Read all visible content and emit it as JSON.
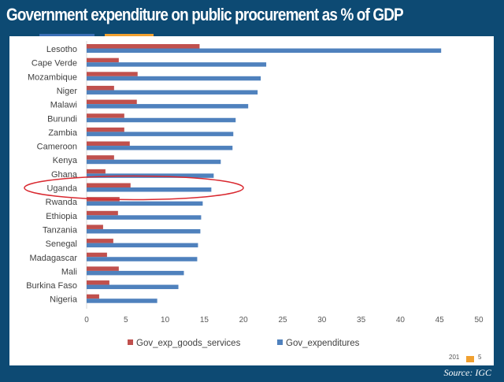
{
  "chart_data": {
    "type": "bar",
    "orientation": "horizontal",
    "title": "Government expenditure on public procurement as % of GDP",
    "categories": [
      "Lesotho",
      "Cape Verde",
      "Mozambique",
      "Niger",
      "Malawi",
      "Burundi",
      "Zambia",
      "Cameroon",
      "Kenya",
      "Ghana",
      "Uganda",
      "Rwanda",
      "Ethiopia",
      "Tanzania",
      "Senegal",
      "Madagascar",
      "Mali",
      "Burkina Faso",
      "Nigeria"
    ],
    "series": [
      {
        "name": "Gov_exp_goods_services",
        "color": "#c0504d",
        "values": [
          14.4,
          4.1,
          6.5,
          3.5,
          6.4,
          4.8,
          4.8,
          5.5,
          3.5,
          2.4,
          5.6,
          4.2,
          4.0,
          2.1,
          3.4,
          2.6,
          4.1,
          2.9,
          1.6
        ]
      },
      {
        "name": "Gov_expenditures",
        "color": "#4f81bd",
        "values": [
          45.2,
          22.9,
          22.2,
          21.8,
          20.6,
          19.0,
          18.7,
          18.6,
          17.1,
          16.2,
          15.9,
          14.8,
          14.6,
          14.5,
          14.2,
          14.1,
          12.4,
          11.7,
          9.0
        ]
      }
    ],
    "xlim": [
      0,
      50
    ],
    "xticks": [
      "0",
      "5",
      "10",
      "15",
      "20",
      "25",
      "30",
      "35",
      "40",
      "45",
      "50"
    ],
    "grid": false,
    "legend": "bottom",
    "highlight": "Uganda",
    "highlight_color": "#d9282f"
  },
  "source": "Source: IGC",
  "cropped_fragments": [
    "201",
    "5"
  ]
}
